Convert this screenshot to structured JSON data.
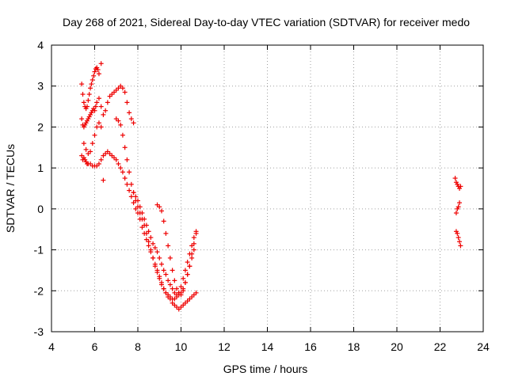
{
  "chart_data": {
    "type": "scatter",
    "title": "Day 268 of 2021, Sidereal Day-to-day VTEC variation (SDTVAR) for receiver medo",
    "xlabel": "GPS time / hours",
    "ylabel": "SDTVAR / TECUs",
    "xlim": [
      4,
      24
    ],
    "ylim": [
      -3,
      4
    ],
    "xticks": [
      4,
      6,
      8,
      10,
      12,
      14,
      16,
      18,
      20,
      22,
      24
    ],
    "yticks": [
      -3,
      -2,
      -1,
      0,
      1,
      2,
      3,
      4
    ],
    "xtick_labels": [
      "4",
      "6",
      "8",
      "10",
      "12",
      "14",
      "16",
      "18",
      "20",
      "22",
      "24"
    ],
    "ytick_labels": [
      "-3",
      "-2",
      "-1",
      "0",
      "1",
      "2",
      "3",
      "4"
    ],
    "grid": true,
    "marker": "+",
    "marker_color": "#ee0000",
    "series": [
      {
        "x": [
          5.4,
          5.45,
          5.5,
          5.55,
          5.6,
          5.65,
          5.7,
          5.75,
          5.8,
          5.85,
          5.9,
          5.95,
          6.0,
          6.05,
          6.1,
          6.2,
          6.3,
          6.4,
          6.5,
          6.6,
          6.7,
          6.8,
          6.9,
          7.0,
          7.1,
          7.2,
          7.3,
          7.4,
          7.5,
          7.6,
          7.7,
          7.8
        ],
        "y": [
          2.2,
          2.05,
          2.0,
          2.05,
          2.1,
          2.15,
          2.2,
          2.25,
          2.3,
          2.35,
          2.4,
          2.45,
          2.4,
          2.5,
          2.6,
          2.7,
          2.5,
          2.3,
          2.4,
          2.6,
          2.75,
          2.8,
          2.85,
          2.9,
          2.95,
          3.0,
          2.95,
          2.85,
          2.6,
          2.35,
          2.2,
          2.1
        ]
      },
      {
        "x": [
          5.4,
          5.45,
          5.5,
          5.55,
          5.6,
          5.65,
          5.7,
          5.75,
          5.8,
          5.85,
          5.9,
          5.95,
          6.0,
          6.05,
          6.1,
          6.15,
          6.2,
          6.3
        ],
        "y": [
          3.05,
          2.8,
          2.6,
          2.5,
          2.45,
          2.5,
          2.65,
          2.8,
          2.95,
          3.05,
          3.15,
          3.25,
          3.35,
          3.42,
          3.45,
          3.4,
          3.3,
          3.55
        ]
      },
      {
        "x": [
          5.4,
          5.45,
          5.5,
          5.55,
          5.6,
          5.65,
          5.7,
          5.8,
          5.9,
          6.0,
          6.1,
          6.2,
          6.3,
          6.4,
          6.5,
          6.6,
          6.7,
          6.8,
          6.9,
          7.0,
          7.1,
          7.2,
          7.3,
          7.4,
          7.5,
          7.6,
          7.7,
          7.8,
          7.9,
          8.0,
          8.1,
          8.2,
          8.3,
          8.4,
          8.5,
          8.6,
          8.7,
          8.8,
          8.9,
          9.0,
          9.1,
          9.2,
          9.3,
          9.4,
          9.5,
          9.6,
          9.7,
          9.8,
          9.9,
          10.0,
          10.1,
          10.2,
          10.3,
          10.4,
          10.5,
          10.6,
          10.7
        ],
        "y": [
          1.3,
          1.2,
          1.25,
          1.2,
          1.15,
          1.1,
          1.1,
          1.1,
          1.05,
          1.05,
          1.05,
          1.1,
          1.2,
          1.3,
          1.35,
          1.4,
          1.35,
          1.3,
          1.25,
          1.2,
          1.1,
          1.0,
          0.9,
          0.75,
          0.6,
          0.45,
          0.3,
          0.15,
          0.0,
          -0.1,
          -0.25,
          -0.45,
          -0.6,
          -0.75,
          -0.9,
          -1.05,
          -1.2,
          -1.35,
          -1.5,
          -1.65,
          -1.8,
          -1.95,
          -2.05,
          -2.15,
          -2.2,
          -2.3,
          -2.35,
          -2.4,
          -2.45,
          -2.4,
          -2.35,
          -2.3,
          -2.25,
          -2.2,
          -2.15,
          -2.1,
          -2.05
        ]
      },
      {
        "x": [
          5.5,
          5.6,
          5.7,
          5.8,
          5.9,
          6.0,
          6.1,
          6.2,
          6.3,
          6.4
        ],
        "y": [
          1.6,
          1.45,
          1.35,
          1.4,
          1.6,
          1.8,
          2.0,
          2.1,
          2.0,
          0.7
        ]
      },
      {
        "x": [
          7.0,
          7.1,
          7.2,
          7.3,
          7.4,
          7.5,
          7.6,
          7.7,
          7.8,
          7.9,
          8.0,
          8.1,
          8.2,
          8.3,
          8.4,
          8.5,
          8.6,
          8.7,
          8.8,
          8.9,
          9.0,
          9.1,
          9.2,
          9.3,
          9.4,
          9.5,
          9.6,
          9.7,
          9.8,
          9.9,
          10.0,
          10.1,
          10.2,
          10.3,
          10.4,
          10.5,
          10.6,
          10.7
        ],
        "y": [
          2.2,
          2.15,
          2.05,
          1.8,
          1.5,
          1.2,
          0.9,
          0.6,
          0.4,
          0.2,
          0.05,
          -0.1,
          -0.25,
          -0.4,
          -0.6,
          -0.8,
          -1.0,
          -1.2,
          -1.4,
          -1.55,
          -1.7,
          -1.85,
          -1.95,
          -2.05,
          -2.1,
          -2.15,
          -2.2,
          -2.2,
          -2.15,
          -2.05,
          -1.9,
          -1.7,
          -1.5,
          -1.3,
          -1.1,
          -0.9,
          -0.7,
          -0.55
        ]
      },
      {
        "x": [
          7.8,
          7.9,
          8.0,
          8.1,
          8.2,
          8.3,
          8.4,
          8.5,
          8.6,
          8.7,
          8.8,
          8.9,
          9.0,
          9.1,
          9.2,
          9.3,
          9.4,
          9.5,
          9.6,
          9.7,
          9.8,
          9.9,
          10.0,
          10.1,
          10.2,
          10.3,
          10.4,
          10.5,
          10.6
        ],
        "y": [
          0.4,
          0.3,
          0.2,
          0.05,
          -0.1,
          -0.25,
          -0.4,
          -0.55,
          -0.7,
          -0.85,
          -0.95,
          -1.05,
          -1.2,
          -1.35,
          -1.5,
          -1.6,
          -1.75,
          -1.85,
          -1.95,
          -2.05,
          -2.1,
          -2.1,
          -2.05,
          -1.95,
          -1.8,
          -1.6,
          -1.4,
          -1.2,
          -1.0
        ]
      },
      {
        "x": [
          8.9,
          9.0,
          9.1,
          9.2,
          9.3,
          9.4,
          9.5,
          9.6,
          9.7,
          9.8,
          9.9,
          10.0,
          10.1,
          10.2,
          10.3,
          10.4,
          10.5,
          10.6,
          10.7
        ],
        "y": [
          0.1,
          0.05,
          -0.05,
          -0.3,
          -0.6,
          -0.9,
          -1.2,
          -1.5,
          -1.75,
          -1.95,
          -2.05,
          -2.1,
          -2.0,
          -1.8,
          -1.6,
          -1.4,
          -1.1,
          -0.85,
          -0.6
        ]
      },
      {
        "x": [
          22.7,
          22.75,
          22.8,
          22.85,
          22.9,
          22.95
        ],
        "y": [
          0.75,
          0.65,
          0.6,
          0.55,
          0.5,
          0.55
        ]
      },
      {
        "x": [
          22.75,
          22.8,
          22.85,
          22.9
        ],
        "y": [
          -0.1,
          0.0,
          0.05,
          0.15
        ]
      },
      {
        "x": [
          22.75,
          22.8,
          22.85,
          22.9,
          22.95
        ],
        "y": [
          -0.55,
          -0.6,
          -0.7,
          -0.8,
          -0.9
        ]
      }
    ]
  }
}
